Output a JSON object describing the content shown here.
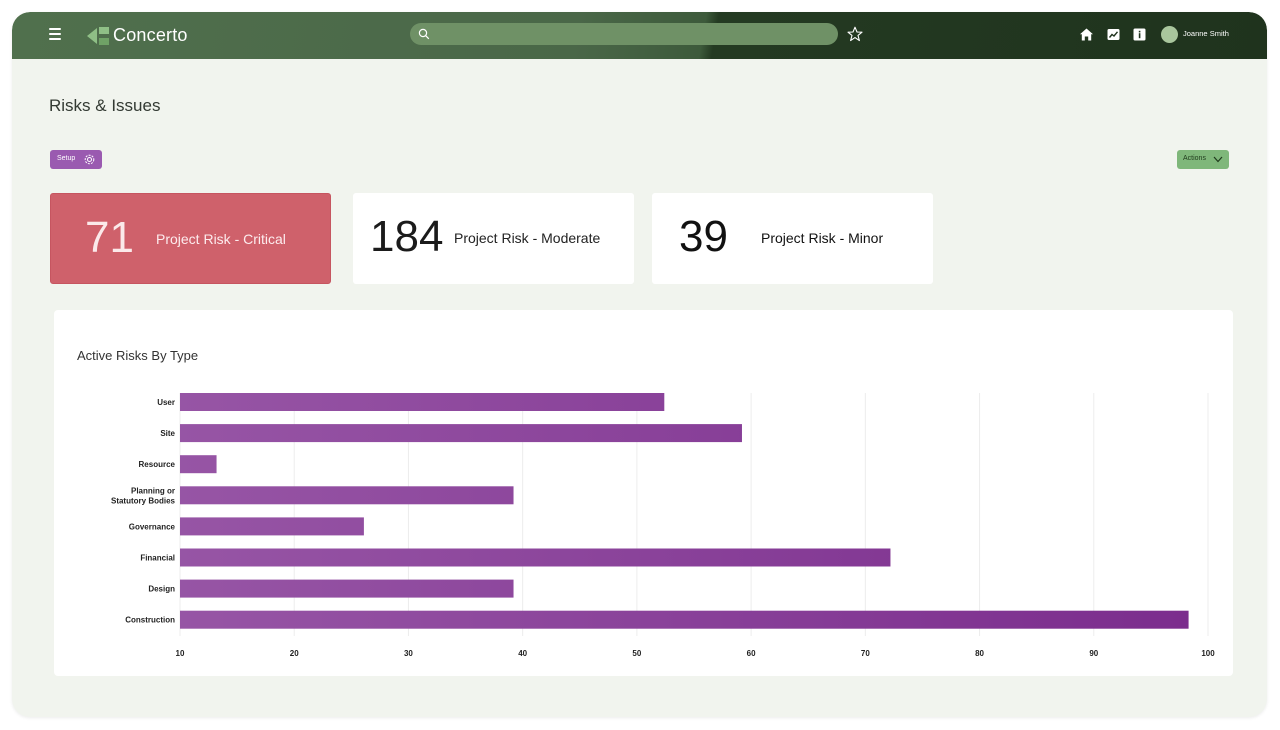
{
  "header": {
    "app_title": "Concerto",
    "search_placeholder": "",
    "user_name": "Joanne Smith",
    "icons": [
      "menu-icon",
      "concerto-logo-icon",
      "search-icon",
      "star-icon",
      "home-icon",
      "chart-icon",
      "info-icon",
      "avatar"
    ]
  },
  "page": {
    "title": "Risks & Issues",
    "setup_label": "Setup",
    "actions_label": "Actions"
  },
  "stats": [
    {
      "count": "71",
      "label": "Project Risk - Critical"
    },
    {
      "count": "184",
      "label": "Project Risk - Moderate"
    },
    {
      "count": "39",
      "label": "Project Risk - Minor"
    }
  ],
  "colors": {
    "critical": "#cf616b",
    "bar_light": "#9a5aa8",
    "bar_dark": "#7a2b8c",
    "header_dark": "#1f331d",
    "header_light": "#50704d"
  },
  "chart_data": {
    "type": "bar",
    "orientation": "horizontal",
    "title": "Active Risks By Type",
    "categories": [
      "User",
      "Site",
      "Resource",
      "Planning or Statutory Bodies",
      "Governance",
      "Financial",
      "Design",
      "Construction"
    ],
    "category_lines": [
      [
        "User"
      ],
      [
        "Site"
      ],
      [
        "Resource"
      ],
      [
        "Planning or",
        "Statutory Bodies"
      ],
      [
        "Governance"
      ],
      [
        "Financial"
      ],
      [
        "Design"
      ],
      [
        "Construction"
      ]
    ],
    "values": [
      52.4,
      59.2,
      13.2,
      39.2,
      26.1,
      72.2,
      39.2,
      98.3
    ],
    "xlim": [
      10,
      100
    ],
    "xticks": [
      "10",
      "20",
      "30",
      "40",
      "50",
      "60",
      "70",
      "80",
      "90",
      "100"
    ],
    "grid": true
  }
}
